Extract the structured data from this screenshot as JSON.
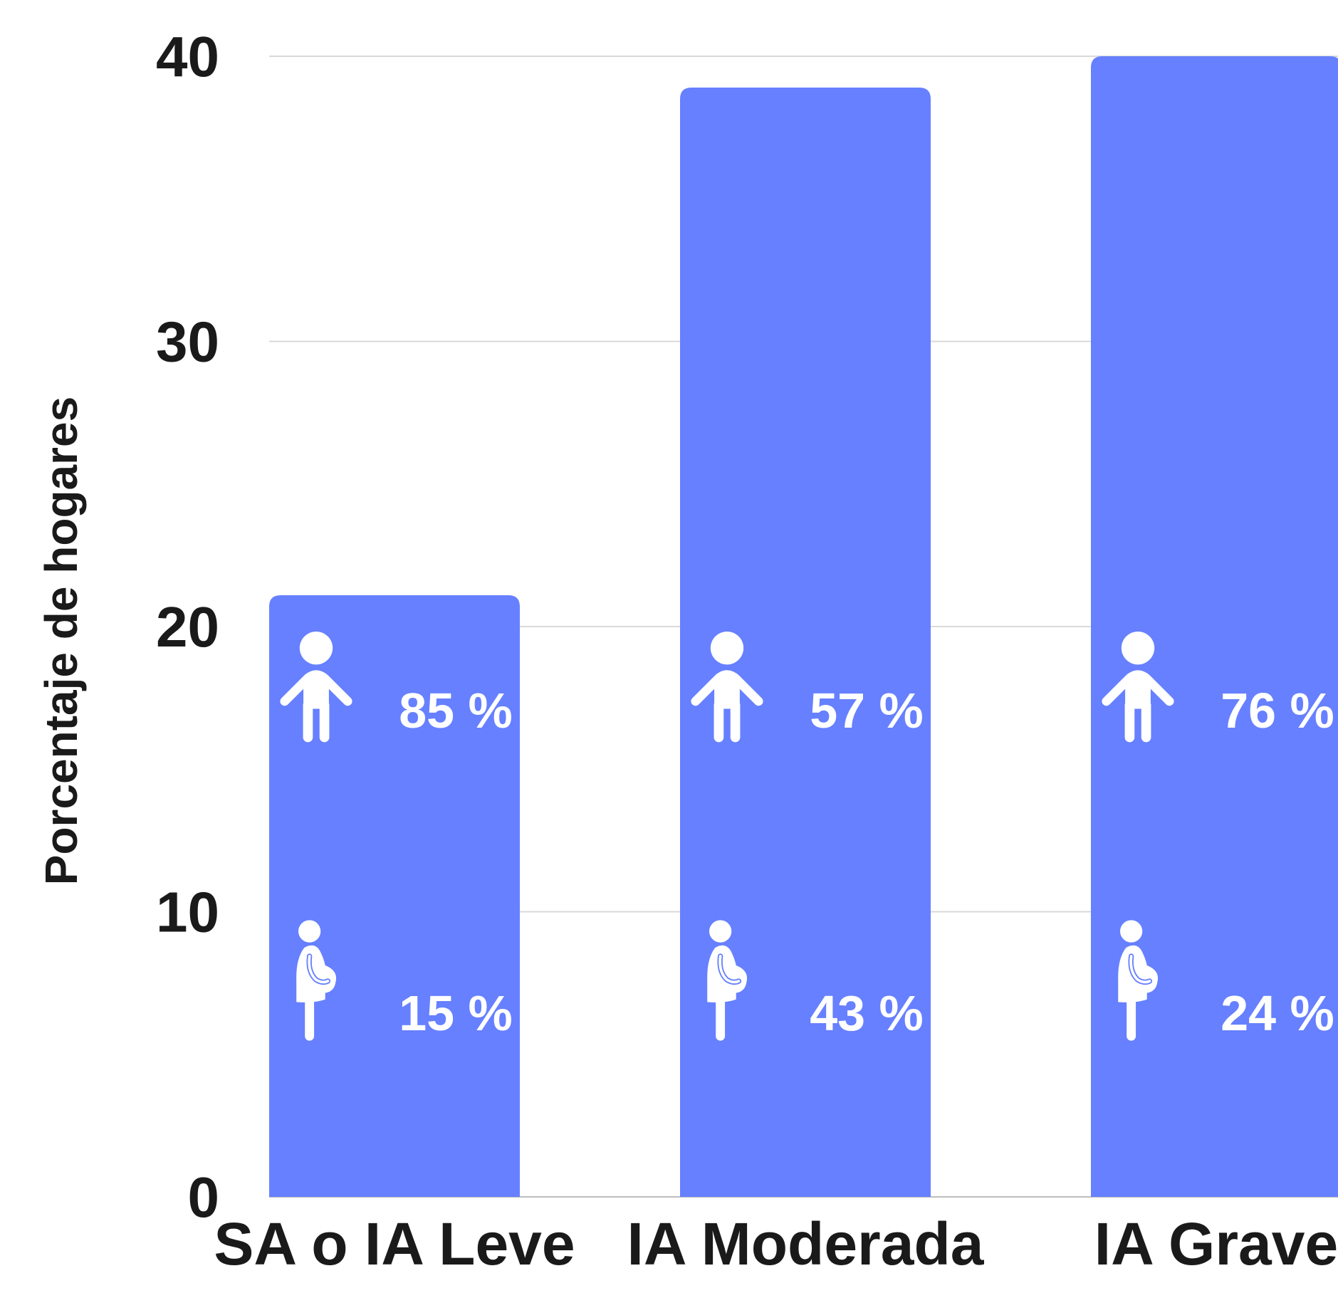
{
  "chart_data": {
    "type": "bar",
    "ylabel": "Porcentaje de hogares",
    "xlabel": "",
    "ylim": [
      0,
      40
    ],
    "yticks": [
      0,
      10,
      20,
      30,
      40
    ],
    "grid": true,
    "colors": {
      "bar": "#6680FF",
      "grid": "#d9d9d9",
      "text": "#1a1a1a",
      "inner_text": "#ffffff"
    },
    "categories": [
      "SA o IA Leve",
      "IA Moderada",
      "IA Grave"
    ],
    "values": [
      21.1,
      38.9,
      40.0
    ],
    "icon_names": {
      "child": "child-icon",
      "pregnant": "pregnant-woman-icon"
    },
    "breakdown": [
      {
        "child_label": "85 %",
        "pregnant_label": "15 %"
      },
      {
        "child_label": "57 %",
        "pregnant_label": "43 %"
      },
      {
        "child_label": "76 %",
        "pregnant_label": "24 %"
      }
    ]
  }
}
